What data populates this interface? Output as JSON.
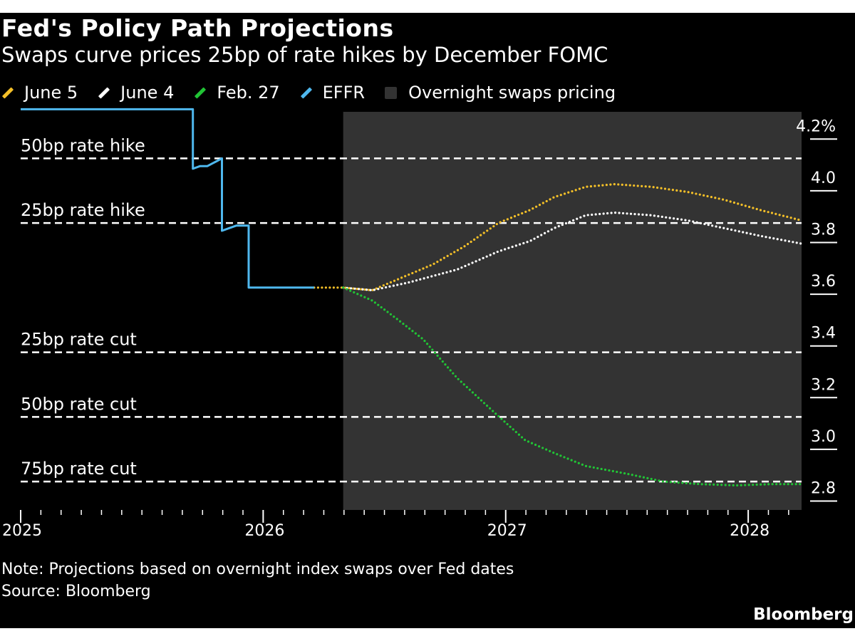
{
  "header": {
    "title": "Fed's Policy Path Projections",
    "subtitle": "Swaps curve prices 25bp of rate hikes by December FOMC"
  },
  "legend": [
    {
      "label": "June 5",
      "color": "#f5c028",
      "kind": "line"
    },
    {
      "label": "June 4",
      "color": "#ffffff",
      "kind": "line"
    },
    {
      "label": "Feb. 27",
      "color": "#21c435",
      "kind": "line"
    },
    {
      "label": "EFFR",
      "color": "#4fb8ee",
      "kind": "line"
    },
    {
      "label": "Overnight swaps pricing",
      "color": "#333333",
      "kind": "box"
    }
  ],
  "footer": {
    "note": "Note: Projections based on overnight index swaps over Fed dates",
    "source": "Source: Bloomberg",
    "brand": "Bloomberg"
  },
  "chart_data": {
    "type": "line",
    "title": "Fed's Policy Path Projections",
    "subtitle": "Swaps curve prices 25bp of rate hikes by December FOMC",
    "xlim": [
      2025.0,
      2028.22
    ],
    "ylim": [
      2.76,
      4.3
    ],
    "x_ticks": [
      "2025",
      "2026",
      "2027",
      "2028"
    ],
    "y_ticks": [
      "4.2%",
      "4.0",
      "3.8",
      "3.6",
      "3.4",
      "3.2",
      "3.0",
      "2.8"
    ],
    "y_tick_values": [
      4.2,
      4.0,
      3.8,
      3.6,
      3.4,
      3.2,
      3.0,
      2.8
    ],
    "shaded_region": {
      "label": "Overnight swaps pricing",
      "x_start": 2026.33,
      "x_end": 2028.22
    },
    "reference_lines": [
      {
        "label": "50bp rate hike",
        "y": 4.12
      },
      {
        "label": "25bp rate hike",
        "y": 3.87
      },
      {
        "label": "25bp rate cut",
        "y": 3.37
      },
      {
        "label": "50bp rate cut",
        "y": 3.12
      },
      {
        "label": "75bp rate cut",
        "y": 2.87
      }
    ],
    "series": [
      {
        "name": "EFFR",
        "color": "#4fb8ee",
        "style": "solid",
        "points": [
          [
            2025.0,
            4.31
          ],
          [
            2025.71,
            4.31
          ],
          [
            2025.71,
            4.08
          ],
          [
            2025.74,
            4.09
          ],
          [
            2025.77,
            4.09
          ],
          [
            2025.79,
            4.1
          ],
          [
            2025.81,
            4.11
          ],
          [
            2025.83,
            4.12
          ],
          [
            2025.83,
            3.84
          ],
          [
            2025.86,
            3.85
          ],
          [
            2025.89,
            3.86
          ],
          [
            2025.94,
            3.86
          ],
          [
            2025.94,
            3.62
          ],
          [
            2026.21,
            3.62
          ]
        ]
      },
      {
        "name": "June 5",
        "color": "#f5c028",
        "style": "dotted",
        "points": [
          [
            2026.21,
            3.62
          ],
          [
            2026.33,
            3.62
          ],
          [
            2026.45,
            3.61
          ],
          [
            2026.55,
            3.65
          ],
          [
            2026.7,
            3.71
          ],
          [
            2026.83,
            3.78
          ],
          [
            2026.97,
            3.87
          ],
          [
            2027.1,
            3.92
          ],
          [
            2027.2,
            3.97
          ],
          [
            2027.33,
            4.01
          ],
          [
            2027.45,
            4.02
          ],
          [
            2027.6,
            4.01
          ],
          [
            2027.75,
            3.99
          ],
          [
            2027.9,
            3.96
          ],
          [
            2028.05,
            3.92
          ],
          [
            2028.22,
            3.88
          ]
        ]
      },
      {
        "name": "June 4",
        "color": "#ffffff",
        "style": "dotted",
        "points": [
          [
            2026.33,
            3.62
          ],
          [
            2026.45,
            3.61
          ],
          [
            2026.6,
            3.64
          ],
          [
            2026.8,
            3.69
          ],
          [
            2026.97,
            3.76
          ],
          [
            2027.1,
            3.8
          ],
          [
            2027.2,
            3.85
          ],
          [
            2027.33,
            3.9
          ],
          [
            2027.45,
            3.91
          ],
          [
            2027.6,
            3.9
          ],
          [
            2027.75,
            3.88
          ],
          [
            2027.9,
            3.85
          ],
          [
            2028.05,
            3.82
          ],
          [
            2028.22,
            3.79
          ]
        ]
      },
      {
        "name": "Feb. 27",
        "color": "#21c435",
        "style": "dotted",
        "points": [
          [
            2026.33,
            3.62
          ],
          [
            2026.45,
            3.57
          ],
          [
            2026.55,
            3.5
          ],
          [
            2026.66,
            3.42
          ],
          [
            2026.8,
            3.27
          ],
          [
            2026.95,
            3.14
          ],
          [
            2027.08,
            3.03
          ],
          [
            2027.2,
            2.98
          ],
          [
            2027.33,
            2.93
          ],
          [
            2027.5,
            2.9
          ],
          [
            2027.65,
            2.87
          ],
          [
            2027.8,
            2.86
          ],
          [
            2027.95,
            2.855
          ],
          [
            2028.1,
            2.86
          ],
          [
            2028.22,
            2.86
          ]
        ]
      }
    ]
  }
}
